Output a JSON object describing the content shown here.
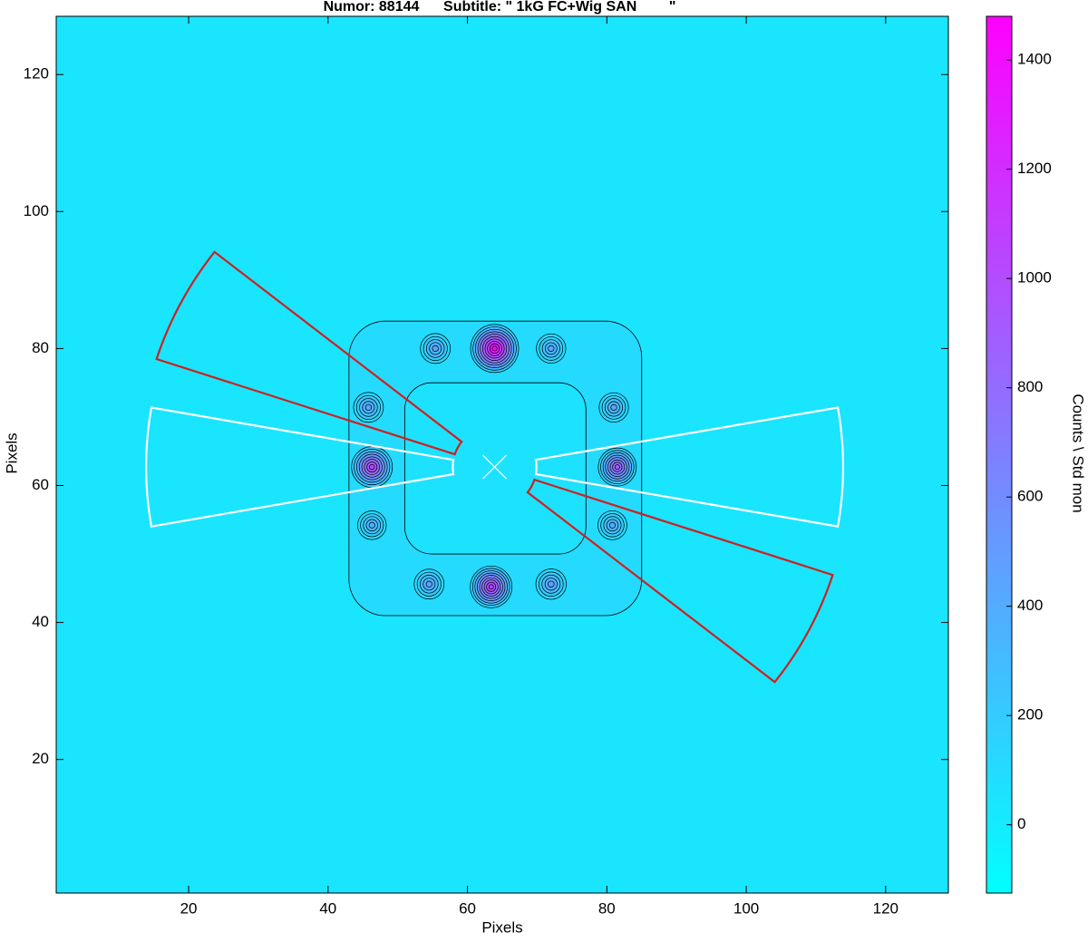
{
  "chart_data": {
    "type": "heatmap",
    "title": "Numor: 88144      Subtitle: \" 1kG FC+Wig SAN        \"",
    "x_label": "Pixels",
    "y_label": "Pixels",
    "colorbar_label": "Counts \\ Std mon",
    "xlim": [
      1,
      129
    ],
    "ylim": [
      0.5,
      128.5
    ],
    "xticks": [
      20,
      40,
      60,
      80,
      100,
      120
    ],
    "yticks": [
      20,
      40,
      60,
      80,
      100,
      120
    ],
    "clim": [
      -125,
      1480
    ],
    "cticks": [
      0,
      200,
      400,
      600,
      800,
      1000,
      1200,
      1400
    ],
    "colormap": [
      "#00ffff",
      "#ff00ff"
    ],
    "background_value": 40,
    "peaks": [
      {
        "x": 63.9,
        "y": 80.0,
        "value": 1450
      },
      {
        "x": 55.4,
        "y": 80.0,
        "value": 450
      },
      {
        "x": 72.0,
        "y": 80.0,
        "value": 420
      },
      {
        "x": 45.8,
        "y": 71.4,
        "value": 450
      },
      {
        "x": 81.0,
        "y": 71.4,
        "value": 420
      },
      {
        "x": 46.3,
        "y": 62.7,
        "value": 1050
      },
      {
        "x": 81.5,
        "y": 62.7,
        "value": 900
      },
      {
        "x": 46.3,
        "y": 54.2,
        "value": 380
      },
      {
        "x": 80.8,
        "y": 54.2,
        "value": 400
      },
      {
        "x": 54.5,
        "y": 45.6,
        "value": 450
      },
      {
        "x": 63.4,
        "y": 45.2,
        "value": 1100
      },
      {
        "x": 72.0,
        "y": 45.6,
        "value": 480
      }
    ],
    "beam_center": [
      63.9,
      62.7
    ],
    "sectors": [
      {
        "angle": 180,
        "half_width": 10,
        "r_in": 6,
        "r_out": 50,
        "color": "#ffffff"
      },
      {
        "angle": 0,
        "half_width": 10,
        "r_in": 6,
        "r_out": 50,
        "color": "#ffffff"
      },
      {
        "angle": 152,
        "half_width": 10,
        "r_in": 6,
        "r_out": 51,
        "color": "#cc2222"
      },
      {
        "angle": -28,
        "half_width": 10,
        "r_in": 6,
        "r_out": 51,
        "color": "#cc2222"
      }
    ]
  }
}
